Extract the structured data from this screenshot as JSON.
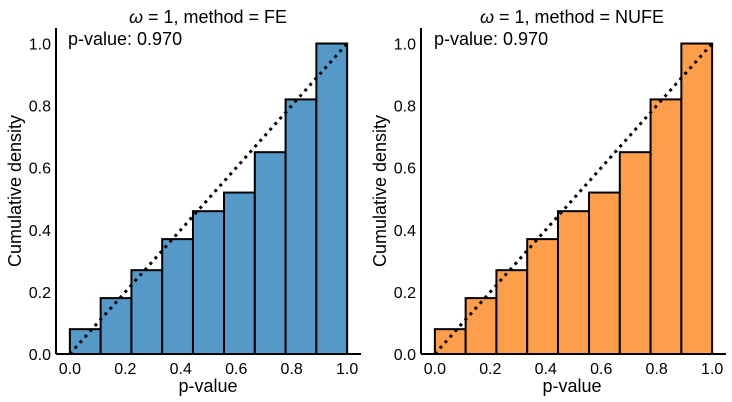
{
  "chart_data": [
    {
      "type": "bar",
      "title_omega": "ω",
      "title_rest": " = 1, method = FE",
      "annotation": "p-value: 0.970",
      "xlabel": "p-value",
      "ylabel": "Cumulative density",
      "color": "#5599c8",
      "xlim": [
        -0.05,
        1.05
      ],
      "ylim": [
        0,
        1.05
      ],
      "xticks": [
        "0.0",
        "0.2",
        "0.4",
        "0.6",
        "0.8",
        "1.0"
      ],
      "yticks": [
        "0.0",
        "0.2",
        "0.4",
        "0.6",
        "0.8",
        "1.0"
      ],
      "bin_edges": [
        0,
        0.111,
        0.222,
        0.333,
        0.444,
        0.556,
        0.667,
        0.778,
        0.889,
        1.0
      ],
      "values": [
        0.08,
        0.18,
        0.27,
        0.37,
        0.46,
        0.52,
        0.65,
        0.82,
        1.0
      ],
      "reference_line": [
        [
          0,
          0
        ],
        [
          1,
          1
        ]
      ],
      "grid": false
    },
    {
      "type": "bar",
      "title_omega": "ω",
      "title_rest": " = 1, method = NUFE",
      "annotation": "p-value: 0.970",
      "xlabel": "p-value",
      "ylabel": "Cumulative density",
      "color": "#ff9e4a",
      "xlim": [
        -0.05,
        1.05
      ],
      "ylim": [
        0,
        1.05
      ],
      "xticks": [
        "0.0",
        "0.2",
        "0.4",
        "0.6",
        "0.8",
        "1.0"
      ],
      "yticks": [
        "0.0",
        "0.2",
        "0.4",
        "0.6",
        "0.8",
        "1.0"
      ],
      "bin_edges": [
        0,
        0.111,
        0.222,
        0.333,
        0.444,
        0.556,
        0.667,
        0.778,
        0.889,
        1.0
      ],
      "values": [
        0.08,
        0.18,
        0.27,
        0.37,
        0.46,
        0.52,
        0.65,
        0.82,
        1.0
      ],
      "reference_line": [
        [
          0,
          0
        ],
        [
          1,
          1
        ]
      ],
      "grid": false
    }
  ]
}
